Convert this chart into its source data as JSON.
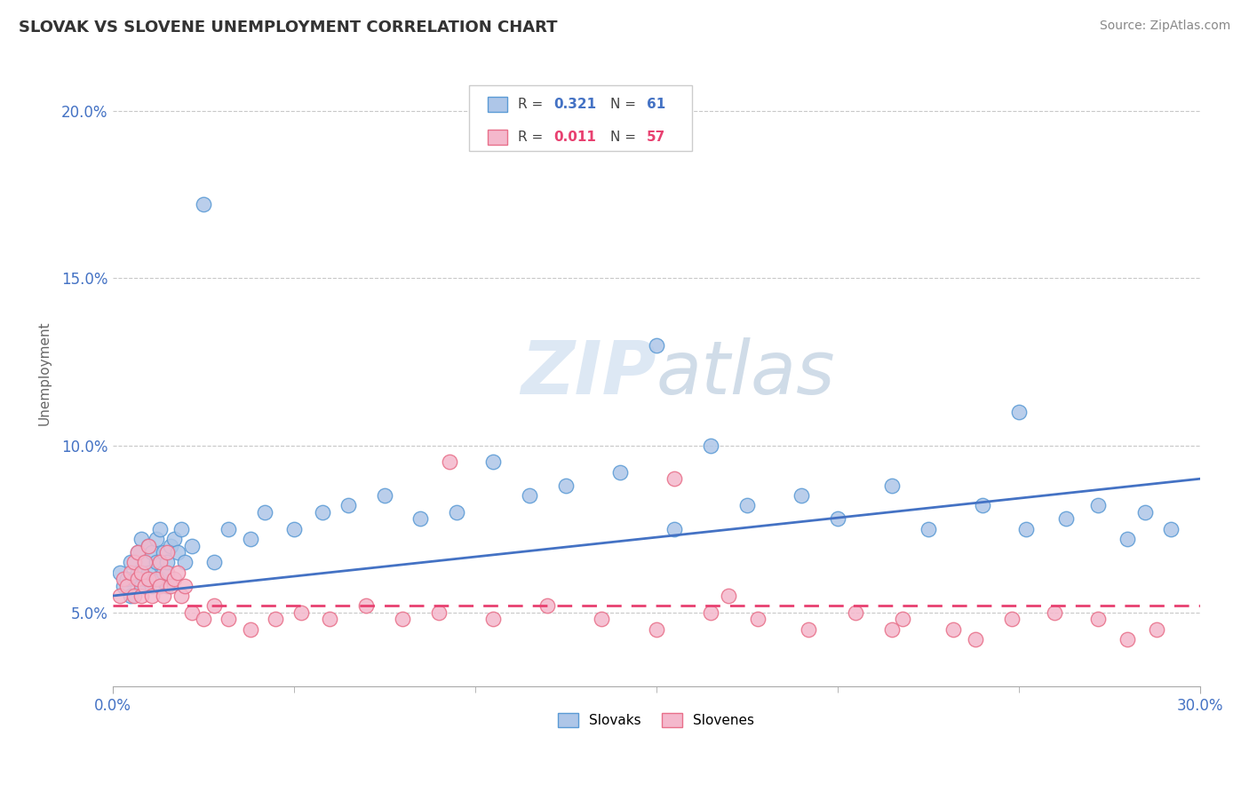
{
  "title": "SLOVAK VS SLOVENE UNEMPLOYMENT CORRELATION CHART",
  "source_text": "Source: ZipAtlas.com",
  "ylabel": "Unemployment",
  "xlim": [
    0.0,
    0.3
  ],
  "ylim": [
    0.028,
    0.215
  ],
  "xticks": [
    0.0,
    0.3
  ],
  "xticklabels": [
    "0.0%",
    "30.0%"
  ],
  "yticks": [
    0.05,
    0.1,
    0.15,
    0.2
  ],
  "yticklabels": [
    "5.0%",
    "10.0%",
    "15.0%",
    "20.0%"
  ],
  "slovak_R": 0.321,
  "slovak_N": 61,
  "slovene_R": 0.011,
  "slovene_N": 57,
  "slovak_color": "#aec6e8",
  "slovak_edge": "#5b9bd5",
  "slovene_color": "#f4b8cc",
  "slovene_edge": "#e8708a",
  "trend_slovak_color": "#4472c4",
  "trend_slovene_color": "#e84070",
  "background_color": "#ffffff",
  "grid_color": "#c8c8c8",
  "title_color": "#333333",
  "ytick_color": "#4472c4",
  "xtick_color": "#4472c4",
  "watermark_color": "#dde8f4",
  "slovak_x": [
    0.002,
    0.003,
    0.004,
    0.005,
    0.005,
    0.006,
    0.007,
    0.007,
    0.008,
    0.008,
    0.009,
    0.009,
    0.01,
    0.01,
    0.011,
    0.011,
    0.012,
    0.012,
    0.013,
    0.013,
    0.014,
    0.014,
    0.015,
    0.015,
    0.016,
    0.017,
    0.018,
    0.019,
    0.02,
    0.022,
    0.025,
    0.028,
    0.032,
    0.038,
    0.042,
    0.05,
    0.058,
    0.065,
    0.075,
    0.085,
    0.095,
    0.105,
    0.115,
    0.125,
    0.14,
    0.155,
    0.165,
    0.175,
    0.19,
    0.2,
    0.215,
    0.225,
    0.24,
    0.252,
    0.263,
    0.272,
    0.28,
    0.285,
    0.292,
    0.15,
    0.25
  ],
  "slovak_y": [
    0.062,
    0.058,
    0.06,
    0.055,
    0.065,
    0.06,
    0.062,
    0.068,
    0.058,
    0.072,
    0.06,
    0.065,
    0.062,
    0.07,
    0.058,
    0.068,
    0.065,
    0.072,
    0.06,
    0.075,
    0.062,
    0.068,
    0.058,
    0.065,
    0.07,
    0.072,
    0.068,
    0.075,
    0.065,
    0.07,
    0.172,
    0.065,
    0.075,
    0.072,
    0.08,
    0.075,
    0.08,
    0.082,
    0.085,
    0.078,
    0.08,
    0.095,
    0.085,
    0.088,
    0.092,
    0.075,
    0.1,
    0.082,
    0.085,
    0.078,
    0.088,
    0.075,
    0.082,
    0.075,
    0.078,
    0.082,
    0.072,
    0.08,
    0.075,
    0.13,
    0.11
  ],
  "slovene_x": [
    0.002,
    0.003,
    0.004,
    0.005,
    0.006,
    0.006,
    0.007,
    0.007,
    0.008,
    0.008,
    0.009,
    0.009,
    0.01,
    0.01,
    0.011,
    0.012,
    0.013,
    0.013,
    0.014,
    0.015,
    0.015,
    0.016,
    0.017,
    0.018,
    0.019,
    0.02,
    0.022,
    0.025,
    0.028,
    0.032,
    0.038,
    0.045,
    0.052,
    0.06,
    0.07,
    0.08,
    0.09,
    0.105,
    0.12,
    0.135,
    0.15,
    0.165,
    0.178,
    0.192,
    0.205,
    0.218,
    0.232,
    0.248,
    0.26,
    0.272,
    0.28,
    0.288,
    0.093,
    0.155,
    0.17,
    0.215,
    0.238
  ],
  "slovene_y": [
    0.055,
    0.06,
    0.058,
    0.062,
    0.055,
    0.065,
    0.06,
    0.068,
    0.055,
    0.062,
    0.058,
    0.065,
    0.06,
    0.07,
    0.055,
    0.06,
    0.058,
    0.065,
    0.055,
    0.062,
    0.068,
    0.058,
    0.06,
    0.062,
    0.055,
    0.058,
    0.05,
    0.048,
    0.052,
    0.048,
    0.045,
    0.048,
    0.05,
    0.048,
    0.052,
    0.048,
    0.05,
    0.048,
    0.052,
    0.048,
    0.045,
    0.05,
    0.048,
    0.045,
    0.05,
    0.048,
    0.045,
    0.048,
    0.05,
    0.048,
    0.042,
    0.045,
    0.095,
    0.09,
    0.055,
    0.045,
    0.042
  ],
  "trend_slovak_x0": 0.0,
  "trend_slovak_x1": 0.3,
  "trend_slovak_y0": 0.055,
  "trend_slovak_y1": 0.09,
  "trend_slovene_x0": 0.0,
  "trend_slovene_x1": 0.3,
  "trend_slovene_y0": 0.052,
  "trend_slovene_y1": 0.052
}
